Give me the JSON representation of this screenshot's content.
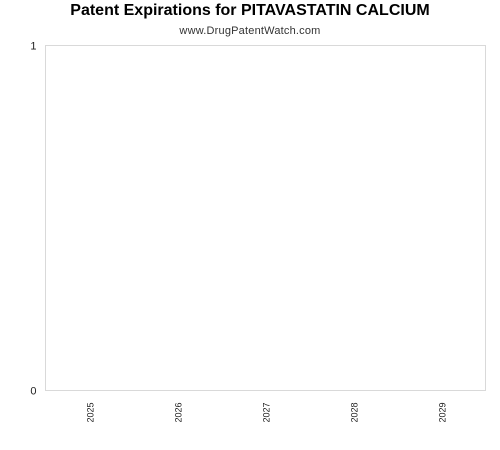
{
  "chart_data": {
    "type": "bar",
    "title": "Patent Expirations for PITAVASTATIN CALCIUM",
    "subtitle": "www.DrugPatentWatch.com",
    "categories": [
      "2025",
      "2026",
      "2027",
      "2028",
      "2029"
    ],
    "values": [
      0,
      0,
      0,
      0,
      0
    ],
    "xlabel": "",
    "ylabel": "",
    "ylim": [
      0,
      1
    ],
    "y_ticks": [
      "0",
      "1"
    ],
    "grid": false,
    "legend": "none",
    "colors": {
      "plot_border": "#d9d9d9",
      "axis_text": "#222222",
      "bar": "#4a7bb7"
    }
  }
}
